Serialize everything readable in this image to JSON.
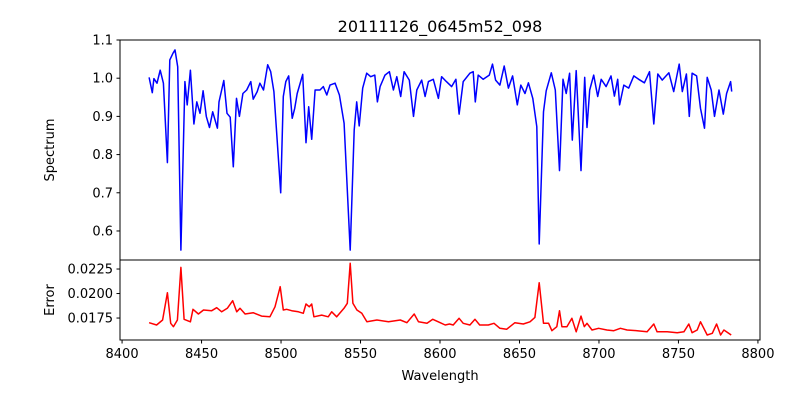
{
  "chart_data": [
    {
      "type": "line",
      "title": "20111126_0645m52_098",
      "xlabel": "",
      "ylabel": "Spectrum",
      "xlim": [
        8398.7,
        8801.3
      ],
      "ylim": [
        0.524,
        1.1
      ],
      "yticks": [
        0.6,
        0.7,
        0.8,
        0.9,
        1.0,
        1.1
      ],
      "ytick_labels": [
        "0.6",
        "0.7",
        "0.8",
        "0.9",
        "1.0",
        "1.1"
      ],
      "grid": false,
      "series": [
        {
          "name": "Spectrum",
          "color": "#0000ff",
          "x": [
            8417,
            8419,
            8420,
            8422,
            8424,
            8426,
            8428.5,
            8430,
            8432,
            8433.3,
            8435,
            8437,
            8439.5,
            8441,
            8443,
            8445.2,
            8447,
            8449,
            8451,
            8453,
            8455,
            8457,
            8460,
            8461,
            8464,
            8466,
            8468,
            8470,
            8472,
            8473.8,
            8476,
            8478.4,
            8481,
            8482.5,
            8485,
            8486.7,
            8489,
            8491.6,
            8493.5,
            8495.5,
            8499.8,
            8501.4,
            8503,
            8504.8,
            8507,
            8508.6,
            8510.2,
            8513.6,
            8515.7,
            8517.4,
            8519.3,
            8521.4,
            8524.5,
            8526.6,
            8528.8,
            8530.8,
            8534,
            8536.7,
            8539.7,
            8543.5,
            8546,
            8547.6,
            8549.2,
            8551.4,
            8553.9,
            8556.4,
            8559,
            8560.6,
            8562.3,
            8565.4,
            8568.2,
            8570.7,
            8572.8,
            8575.3,
            8577.4,
            8580.7,
            8583.3,
            8585.4,
            8588.5,
            8590.6,
            8592.7,
            8595.8,
            8599,
            8601,
            8604,
            8607.3,
            8610,
            8612,
            8614.6,
            8618.8,
            8620.9,
            8622.2,
            8624,
            8627.2,
            8631,
            8633,
            8635,
            8637.7,
            8640.4,
            8643,
            8645.7,
            8648.6,
            8650.8,
            8653.5,
            8655.6,
            8658.4,
            8660.9,
            8662.4,
            8665.1,
            8666.8,
            8670,
            8672.5,
            8675.2,
            8677.4,
            8679.4,
            8681.5,
            8683.2,
            8685.7,
            8688.7,
            8691,
            8692.5,
            8694.2,
            8696.7,
            8699.2,
            8701.4,
            8704.5,
            8707.6,
            8709.7,
            8711.8,
            8713,
            8715.6,
            8718.7,
            8721.9,
            8725,
            8728.6,
            8731.8,
            8734.5,
            8737,
            8739.8,
            8744,
            8747,
            8750.5,
            8752.4,
            8755,
            8756.8,
            8758.6,
            8761.4,
            8763.9,
            8766.4,
            8768.1,
            8770.6,
            8772.7,
            8775.5,
            8778.2,
            8780.3,
            8782.8,
            8783.5
          ],
          "y": [
            1.002,
            0.962,
            0.999,
            0.987,
            1.021,
            0.987,
            0.779,
            1.048,
            1.065,
            1.074,
            1.03,
            0.55,
            0.991,
            0.93,
            1.021,
            0.88,
            0.938,
            0.908,
            0.967,
            0.9,
            0.871,
            0.912,
            0.869,
            0.938,
            0.994,
            0.908,
            0.898,
            0.768,
            0.947,
            0.9,
            0.96,
            0.969,
            0.991,
            0.945,
            0.965,
            0.987,
            0.969,
            1.035,
            1.017,
            0.965,
            0.7,
            0.952,
            0.991,
            1.006,
            0.895,
            0.921,
            0.96,
            1.01,
            0.831,
            0.925,
            0.84,
            0.969,
            0.969,
            0.978,
            0.956,
            0.982,
            0.987,
            0.956,
            0.882,
            0.55,
            0.864,
            0.938,
            0.875,
            0.974,
            1.013,
            1.004,
            1.008,
            0.938,
            0.978,
            1.008,
            1.017,
            0.969,
            1.004,
            0.952,
            1.017,
            0.995,
            0.9,
            0.969,
            0.995,
            0.952,
            0.991,
            0.997,
            0.947,
            1.004,
            0.991,
            0.978,
            0.997,
            0.906,
            0.991,
            1.013,
            1.017,
            0.938,
            1.008,
            0.997,
            1.008,
            1.037,
            0.995,
            0.982,
            1.032,
            0.974,
            1.006,
            0.93,
            0.982,
            0.96,
            0.988,
            0.947,
            0.873,
            0.566,
            0.912,
            0.967,
            1.014,
            0.969,
            0.758,
            0.997,
            0.96,
            1.013,
            0.838,
            1.02,
            0.758,
            1.002,
            0.871,
            0.969,
            1.008,
            0.952,
            0.997,
            0.978,
            1.006,
            0.953,
            0.997,
            0.93,
            0.982,
            0.974,
            1.006,
            0.997,
            0.988,
            1.017,
            0.88,
            1.011,
            0.995,
            1.014,
            0.965,
            1.037,
            0.965,
            1.011,
            0.9,
            1.013,
            1.006,
            0.921,
            0.869,
            1.002,
            0.969,
            0.9,
            0.969,
            0.906,
            0.96,
            0.991,
            0.965
          ]
        }
      ]
    },
    {
      "type": "line",
      "title": "",
      "xlabel": "Wavelength",
      "ylabel": "Error",
      "xlim": [
        8398.7,
        8801.3
      ],
      "ylim": [
        0.01526,
        0.02342
      ],
      "xticks": [
        8400,
        8450,
        8500,
        8550,
        8600,
        8650,
        8700,
        8750,
        8800
      ],
      "xtick_labels": [
        "8400",
        "8450",
        "8500",
        "8550",
        "8600",
        "8650",
        "8700",
        "8750",
        "8800"
      ],
      "yticks": [
        0.0175,
        0.02,
        0.0225
      ],
      "ytick_labels": [
        "0.0175",
        "0.0200",
        "0.0225"
      ],
      "grid": false,
      "series": [
        {
          "name": "Error",
          "color": "#ff0000",
          "x": [
            8417,
            8421.7,
            8425.5,
            8428.5,
            8430.6,
            8432.3,
            8434.8,
            8437,
            8439,
            8443,
            8444.6,
            8448,
            8451.2,
            8456.4,
            8459.5,
            8462.7,
            8466.2,
            8469.6,
            8472.1,
            8474.2,
            8477.4,
            8482.5,
            8487.8,
            8493,
            8496.2,
            8499.5,
            8501.4,
            8503.5,
            8506.7,
            8510.9,
            8514,
            8515.7,
            8517.8,
            8519.3,
            8520.7,
            8525.6,
            8529.7,
            8531.9,
            8535,
            8539.6,
            8541.7,
            8543.5,
            8545.2,
            8547.7,
            8550.8,
            8554,
            8560.3,
            8567.6,
            8575,
            8579.2,
            8583.8,
            8586.5,
            8591.8,
            8595.5,
            8600.1,
            8603.3,
            8606,
            8608.3,
            8612,
            8614.6,
            8618.8,
            8622,
            8625,
            8630.4,
            8634,
            8637.7,
            8641.9,
            8647.1,
            8652.4,
            8656.6,
            8659.7,
            8662.4,
            8665.1,
            8668.3,
            8670.4,
            8673.5,
            8675.2,
            8676.7,
            8679.8,
            8683,
            8685.7,
            8688.7,
            8690.8,
            8692.5,
            8695.6,
            8699.8,
            8705,
            8709.3,
            8713.5,
            8717.7,
            8724,
            8730.3,
            8734.5,
            8736.6,
            8742.9,
            8749.2,
            8753.4,
            8756.5,
            8758.6,
            8761.8,
            8763.9,
            8768.1,
            8771.3,
            8774,
            8776.5,
            8778.6,
            8783.2
          ],
          "y": [
            0.01702,
            0.01679,
            0.0173,
            0.02008,
            0.01696,
            0.01662,
            0.0173,
            0.02267,
            0.01737,
            0.01712,
            0.01839,
            0.01791,
            0.01832,
            0.01825,
            0.01855,
            0.01814,
            0.01849,
            0.01927,
            0.01814,
            0.01849,
            0.01791,
            0.01804,
            0.0177,
            0.01763,
            0.01865,
            0.0207,
            0.01832,
            0.01839,
            0.01825,
            0.01814,
            0.01798,
            0.01893,
            0.01865,
            0.01893,
            0.01763,
            0.0178,
            0.01763,
            0.01814,
            0.01763,
            0.01849,
            0.019,
            0.02308,
            0.019,
            0.01832,
            0.01798,
            0.01712,
            0.0173,
            0.01712,
            0.0173,
            0.01702,
            0.01791,
            0.01712,
            0.01696,
            0.01737,
            0.01702,
            0.01679,
            0.01689,
            0.01679,
            0.01747,
            0.01696,
            0.01679,
            0.01737,
            0.01679,
            0.01679,
            0.01696,
            0.01645,
            0.01635,
            0.01702,
            0.01689,
            0.01712,
            0.01757,
            0.0211,
            0.01696,
            0.01696,
            0.01621,
            0.01662,
            0.01825,
            0.01662,
            0.01662,
            0.01747,
            0.0161,
            0.0177,
            0.01662,
            0.01696,
            0.01628,
            0.01645,
            0.01628,
            0.01621,
            0.01645,
            0.01628,
            0.01621,
            0.0161,
            0.01689,
            0.0161,
            0.0161,
            0.016,
            0.0161,
            0.01689,
            0.016,
            0.01628,
            0.01712,
            0.01577,
            0.01594,
            0.01689,
            0.01577,
            0.01628,
            0.01577
          ]
        }
      ]
    }
  ]
}
